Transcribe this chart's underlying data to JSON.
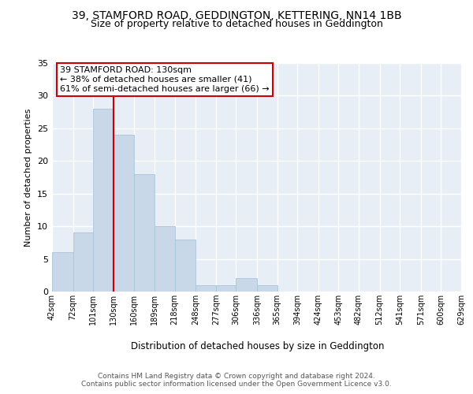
{
  "title1": "39, STAMFORD ROAD, GEDDINGTON, KETTERING, NN14 1BB",
  "title2": "Size of property relative to detached houses in Geddington",
  "xlabel": "Distribution of detached houses by size in Geddington",
  "ylabel": "Number of detached properties",
  "bar_color": "#c8d8e8",
  "bar_edge_color": "#a8c4d8",
  "ref_line_x": 130,
  "ref_line_color": "#cc0000",
  "bin_edges": [
    42,
    72,
    101,
    130,
    160,
    189,
    218,
    248,
    277,
    306,
    336,
    365,
    394,
    424,
    453,
    482,
    512,
    541,
    571,
    600,
    629
  ],
  "bar_heights": [
    6,
    9,
    28,
    24,
    18,
    10,
    8,
    1,
    1,
    2,
    1,
    0,
    0,
    0,
    0,
    0,
    0,
    0,
    0,
    0
  ],
  "tick_labels": [
    "42sqm",
    "72sqm",
    "101sqm",
    "130sqm",
    "160sqm",
    "189sqm",
    "218sqm",
    "248sqm",
    "277sqm",
    "306sqm",
    "336sqm",
    "365sqm",
    "394sqm",
    "424sqm",
    "453sqm",
    "482sqm",
    "512sqm",
    "541sqm",
    "571sqm",
    "600sqm",
    "629sqm"
  ],
  "annotation_title": "39 STAMFORD ROAD: 130sqm",
  "annotation_line2": "← 38% of detached houses are smaller (41)",
  "annotation_line3": "61% of semi-detached houses are larger (66) →",
  "annotation_box_color": "#ffffff",
  "annotation_box_edge": "#cc0000",
  "background_color": "#e8eef5",
  "grid_color": "#ffffff",
  "ylim": [
    0,
    35
  ],
  "yticks": [
    0,
    5,
    10,
    15,
    20,
    25,
    30,
    35
  ],
  "footer1": "Contains HM Land Registry data © Crown copyright and database right 2024.",
  "footer2": "Contains public sector information licensed under the Open Government Licence v3.0.",
  "title_fontsize": 10,
  "subtitle_fontsize": 9
}
